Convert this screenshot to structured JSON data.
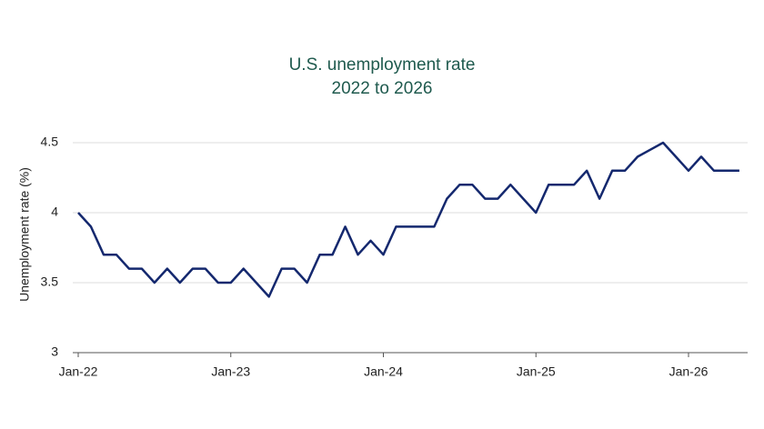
{
  "chart_data": {
    "type": "line",
    "title": "U.S. unemployment rate",
    "subtitle": "2022 to 2026",
    "y_label": "Unemployment rate (%)",
    "categories": [
      "Jan-22",
      null,
      null,
      null,
      null,
      null,
      null,
      null,
      null,
      null,
      null,
      null,
      "Jan-23",
      null,
      null,
      null,
      null,
      null,
      null,
      null,
      null,
      null,
      null,
      null,
      "Jan-24",
      null,
      null,
      null,
      null,
      null,
      null,
      null,
      null,
      null,
      null,
      null,
      "Jan-25",
      null,
      null,
      null,
      null,
      null,
      null,
      null,
      null,
      null,
      null,
      null,
      "Jan-26",
      null,
      null,
      null,
      null
    ],
    "series": [
      {
        "name": "Unemployment rate",
        "color": "#14286e",
        "values": [
          4.0,
          3.9,
          3.7,
          3.7,
          3.6,
          3.6,
          3.5,
          3.6,
          3.5,
          3.6,
          3.6,
          3.5,
          3.5,
          3.6,
          3.5,
          3.4,
          3.6,
          3.6,
          3.5,
          3.7,
          3.7,
          3.9,
          3.7,
          3.8,
          3.7,
          3.9,
          3.9,
          3.9,
          3.9,
          4.1,
          4.2,
          4.2,
          4.1,
          4.1,
          4.2,
          4.1,
          4.0,
          4.2,
          4.2,
          4.2,
          4.3,
          4.1,
          4.3,
          4.3,
          4.4,
          4.45,
          4.5,
          4.4,
          4.3,
          4.4,
          4.3,
          4.3,
          4.3
        ]
      }
    ],
    "ylim": [
      3,
      4.5
    ],
    "yticks": [
      3,
      3.5,
      4,
      4.5
    ],
    "grid": true
  }
}
